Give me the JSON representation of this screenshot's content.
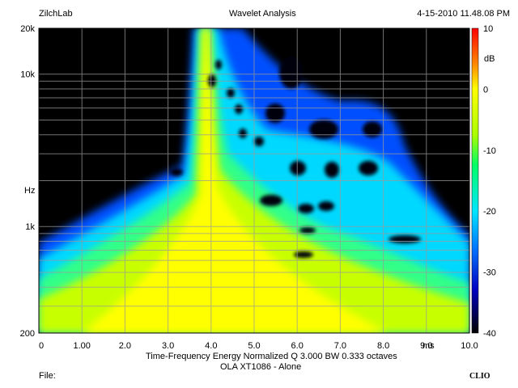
{
  "header": {
    "left": "ZilchLab",
    "title": "Wavelet Analysis",
    "timestamp": "4-15-2010 11.48.08 PM"
  },
  "footer": {
    "file_label": "File:",
    "brand": "CLIO"
  },
  "chart_data": {
    "type": "heatmap",
    "title": "Wavelet Analysis",
    "subtitle": "Time-Frequency Energy   Normalized  Q 3.000 BW 0.333 octaves",
    "caption": "OLA XT1086 - Alone",
    "x": {
      "label": "ms",
      "range": [
        0,
        10
      ],
      "ticks": [
        "0",
        "1.00",
        "2.0",
        "3.0",
        "4.0",
        "5.0",
        "6.0",
        "7.0",
        "8.0",
        "9.0",
        "10.0"
      ],
      "tick_values": [
        0,
        1,
        2,
        3,
        4,
        5,
        6,
        7,
        8,
        9,
        10
      ]
    },
    "y": {
      "label": "Hz",
      "scale": "log",
      "range": [
        200,
        20000
      ],
      "ticks": [
        "200",
        "1k",
        "10k",
        "20k"
      ],
      "tick_values": [
        200,
        1000,
        10000,
        20000
      ]
    },
    "colorbar": {
      "unit": "dB",
      "range": [
        -40,
        10
      ],
      "ticks": [
        "10",
        "0",
        "-10",
        "-20",
        "-30",
        "-40"
      ],
      "tick_values": [
        10,
        0,
        -10,
        -20,
        -30,
        -40
      ]
    },
    "grid": true,
    "colors": {
      "background": "#000000",
      "peak": "#ffff00",
      "grid": "#9a9a9a"
    }
  }
}
